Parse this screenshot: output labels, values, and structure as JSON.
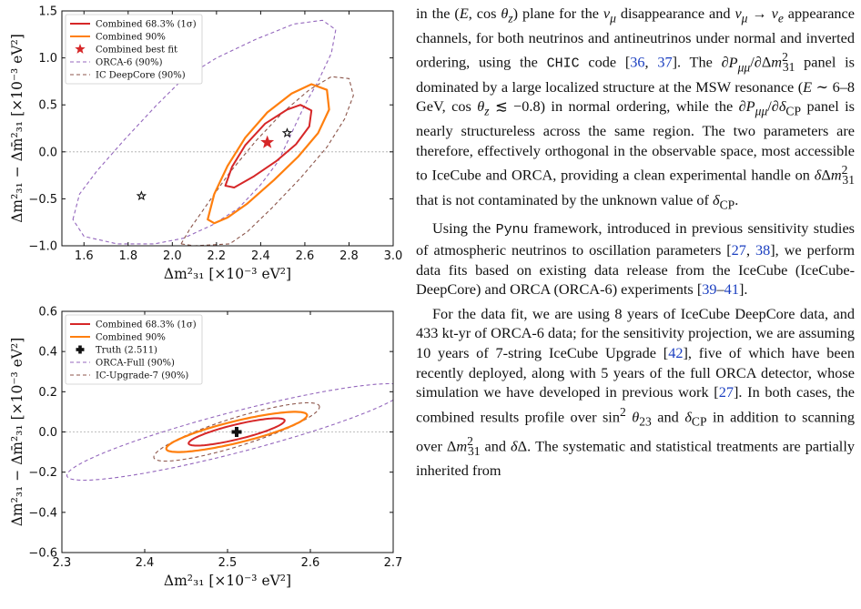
{
  "chart_data": [
    {
      "type": "contour",
      "panel": "top",
      "xlabel": "Δm²₃₁ [×10⁻³ eV²]",
      "ylabel": "Δm²₃₁ − Δm̄²₃₁ [×10⁻³ eV²]",
      "xlim": [
        1.5,
        3.0
      ],
      "ylim": [
        -1.0,
        1.5
      ],
      "xticks": [
        "1.6",
        "1.8",
        "2.0",
        "2.2",
        "2.4",
        "2.6",
        "2.8",
        "3.0"
      ],
      "yticks": [
        "−1.0",
        "−0.5",
        "0.0",
        "0.5",
        "1.0",
        "1.5"
      ],
      "legend_position": "upper-left",
      "legend": [
        {
          "label": "Combined 68.3% (1σ)",
          "color": "#d62728",
          "style": "solid"
        },
        {
          "label": "Combined 90%",
          "color": "#ff7f0e",
          "style": "solid"
        },
        {
          "label": "Combined best fit",
          "color": "#d62728",
          "style": "star"
        },
        {
          "label": "ORCA-6 (90%)",
          "color": "#9467bd",
          "style": "dashed"
        },
        {
          "label": "IC DeepCore (90%)",
          "color": "#8c564b",
          "style": "dashed"
        }
      ],
      "contours": [
        {
          "name": "ORCA-6 (90%)",
          "color": "#9467bd",
          "dash": "4,3",
          "width": 1.1,
          "points": [
            [
              1.55,
              -0.72
            ],
            [
              1.58,
              -0.45
            ],
            [
              1.66,
              -0.2
            ],
            [
              1.78,
              0.12
            ],
            [
              1.93,
              0.5
            ],
            [
              2.05,
              0.78
            ],
            [
              2.2,
              1.0
            ],
            [
              2.38,
              1.2
            ],
            [
              2.55,
              1.36
            ],
            [
              2.68,
              1.4
            ],
            [
              2.74,
              1.3
            ],
            [
              2.72,
              1.05
            ],
            [
              2.66,
              0.75
            ],
            [
              2.6,
              0.5
            ],
            [
              2.56,
              0.3
            ],
            [
              2.52,
              0.1
            ],
            [
              2.48,
              -0.1
            ],
            [
              2.4,
              -0.35
            ],
            [
              2.3,
              -0.6
            ],
            [
              2.18,
              -0.78
            ],
            [
              2.05,
              -0.92
            ],
            [
              1.92,
              -0.98
            ],
            [
              1.75,
              -0.98
            ],
            [
              1.6,
              -0.9
            ],
            [
              1.55,
              -0.72
            ]
          ]
        },
        {
          "name": "IC DeepCore (90%)",
          "color": "#8c564b",
          "dash": "4,3",
          "width": 1.1,
          "points": [
            [
              2.04,
              -0.98
            ],
            [
              2.08,
              -0.82
            ],
            [
              2.16,
              -0.55
            ],
            [
              2.26,
              -0.22
            ],
            [
              2.38,
              0.12
            ],
            [
              2.5,
              0.42
            ],
            [
              2.62,
              0.66
            ],
            [
              2.72,
              0.8
            ],
            [
              2.8,
              0.78
            ],
            [
              2.82,
              0.6
            ],
            [
              2.78,
              0.35
            ],
            [
              2.7,
              0.05
            ],
            [
              2.58,
              -0.28
            ],
            [
              2.45,
              -0.6
            ],
            [
              2.34,
              -0.85
            ],
            [
              2.26,
              -0.98
            ],
            [
              2.1,
              -1.0
            ],
            [
              2.04,
              -0.98
            ]
          ]
        },
        {
          "name": "Combined 90%",
          "color": "#ff7f0e",
          "dash": "",
          "width": 2.2,
          "points": [
            [
              2.16,
              -0.72
            ],
            [
              2.19,
              -0.45
            ],
            [
              2.25,
              -0.15
            ],
            [
              2.33,
              0.15
            ],
            [
              2.43,
              0.42
            ],
            [
              2.54,
              0.62
            ],
            [
              2.63,
              0.72
            ],
            [
              2.7,
              0.66
            ],
            [
              2.71,
              0.45
            ],
            [
              2.66,
              0.2
            ],
            [
              2.57,
              -0.05
            ],
            [
              2.46,
              -0.3
            ],
            [
              2.34,
              -0.55
            ],
            [
              2.25,
              -0.7
            ],
            [
              2.19,
              -0.76
            ],
            [
              2.16,
              -0.72
            ]
          ]
        },
        {
          "name": "Combined 68.3% (1σ)",
          "color": "#d62728",
          "dash": "",
          "width": 2.0,
          "points": [
            [
              2.24,
              -0.36
            ],
            [
              2.27,
              -0.16
            ],
            [
              2.33,
              0.07
            ],
            [
              2.42,
              0.3
            ],
            [
              2.52,
              0.45
            ],
            [
              2.58,
              0.5
            ],
            [
              2.63,
              0.44
            ],
            [
              2.62,
              0.27
            ],
            [
              2.56,
              0.08
            ],
            [
              2.47,
              -0.1
            ],
            [
              2.37,
              -0.26
            ],
            [
              2.28,
              -0.38
            ],
            [
              2.24,
              -0.36
            ]
          ]
        }
      ],
      "markers": [
        {
          "name": "Combined best fit",
          "x": 2.43,
          "y": 0.1,
          "shape": "star",
          "color": "#d62728"
        },
        {
          "name": "star-black-1",
          "x": 2.52,
          "y": 0.2,
          "shape": "star",
          "color": "#111111"
        },
        {
          "name": "star-black-2",
          "x": 1.86,
          "y": -0.47,
          "shape": "star",
          "color": "#111111"
        }
      ],
      "hline": 0.0
    },
    {
      "type": "contour",
      "panel": "bottom",
      "xlabel": "Δm²₃₁ [×10⁻³ eV²]",
      "ylabel": "Δm²₃₁ − Δm̄²₃₁ [×10⁻³ eV²]",
      "xlim": [
        2.3,
        2.7
      ],
      "ylim": [
        -0.6,
        0.6
      ],
      "xticks": [
        "2.3",
        "2.4",
        "2.5",
        "2.6",
        "2.7"
      ],
      "yticks": [
        "−0.6",
        "−0.4",
        "−0.2",
        "0.0",
        "0.2",
        "0.4",
        "0.6"
      ],
      "legend_position": "upper-left",
      "legend": [
        {
          "label": "Combined 68.3% (1σ)",
          "color": "#d62728",
          "style": "solid"
        },
        {
          "label": "Combined 90%",
          "color": "#ff7f0e",
          "style": "solid"
        },
        {
          "label": "Truth (2.511)",
          "color": "#111111",
          "style": "plus"
        },
        {
          "label": "ORCA-Full (90%)",
          "color": "#9467bd",
          "style": "dashed"
        },
        {
          "label": "IC-Upgrade-7 (90%)",
          "color": "#8c564b",
          "style": "dashed"
        }
      ],
      "ellipses": [
        {
          "name": "ORCA-Full (90%)",
          "color": "#9467bd",
          "dash": "4,3",
          "width": 1.1,
          "cx": 2.511,
          "cy": 0.0,
          "a": 0.205,
          "b": 0.24,
          "rho": 0.9
        },
        {
          "name": "IC-Upgrade-7 (90%)",
          "color": "#8c564b",
          "dash": "4,3",
          "width": 1.1,
          "cx": 2.511,
          "cy": 0.0,
          "a": 0.1,
          "b": 0.145,
          "rho": 0.86
        },
        {
          "name": "Combined 90%",
          "color": "#ff7f0e",
          "dash": "",
          "width": 2.2,
          "cx": 2.511,
          "cy": 0.0,
          "a": 0.085,
          "b": 0.1,
          "rho": 0.83
        },
        {
          "name": "Combined 68.3% (1σ)",
          "color": "#d62728",
          "dash": "",
          "width": 2.0,
          "cx": 2.511,
          "cy": 0.0,
          "a": 0.058,
          "b": 0.068,
          "rho": 0.83
        }
      ],
      "markers": [
        {
          "name": "Truth (2.511)",
          "x": 2.511,
          "y": 0.0,
          "shape": "plus",
          "color": "#111111"
        }
      ],
      "hline": 0.0
    }
  ],
  "text": {
    "p1": "in the (E, cos θz) plane for the νμ disappearance and νμ → νe appearance channels, for both neutrinos and antineutrinos under normal and inverted ordering, using the CHIC code [36, 37]. The ∂Pμμ/∂Δm²₃₁ panel is dominated by a large localized structure at the MSW resonance (E ∼ 6–8 GeV, cos θz ≲ −0.8) in normal ordering, while the ∂Pμμ/∂δCP panel is nearly structureless across the same region. The two parameters are therefore, effectively orthogonal in the observable space, most accessible to IceCube and ORCA, providing a clean experimental handle on δΔm²₃₁ that is not contaminated by the unknown value of δCP.",
    "p2": "Using the Pynu framework, introduced in previous sensitivity studies of atmospheric neutrinos to oscillation parameters [27, 38], we perform data fits based on existing data release from the IceCube (IceCube-DeepCore) and ORCA (ORCA-6) experiments [39–41].",
    "p3": "For the data fit, we are using 8 years of IceCube DeepCore data, and 433 kt-yr of ORCA-6 data; for the sensitivity projection, we are assuming 10 years of 7-string IceCube Upgrade [42], five of which have been recently deployed, along with 5 years of the full ORCA detector, whose simulation we have developed in previous work [27]. In both cases, the combined results profile over sin² θ23 and δCP in addition to scanning over Δm²₃₁ and δΔ. The systematic and statistical treatments are partially inherited from"
  }
}
